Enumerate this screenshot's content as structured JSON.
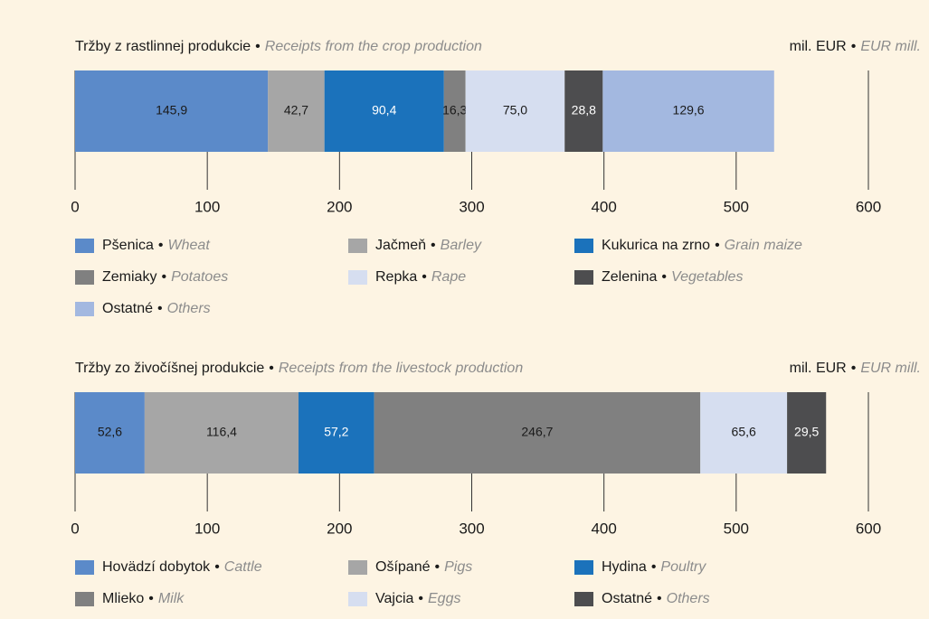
{
  "chart_data": [
    {
      "type": "bar",
      "orientation": "horizontal",
      "stacked": true,
      "title": "Tržby z rastlinnej produkcie",
      "separator": "•",
      "title_en": "Receipts from the crop production",
      "unit": "mil. EUR",
      "unit_en": "EUR mill.",
      "xlim": [
        0,
        600
      ],
      "xticks": [
        0,
        100,
        200,
        300,
        400,
        500,
        600
      ],
      "grid": true,
      "series": [
        {
          "name": "Pšenica",
          "name_en": "Wheat",
          "color": "#5b8ac9",
          "values": [
            145.9
          ],
          "value_labels": [
            "145,9"
          ]
        },
        {
          "name": "Jačmeň",
          "name_en": "Barley",
          "color": "#a6a6a6",
          "values": [
            42.7
          ],
          "value_labels": [
            "42,7"
          ]
        },
        {
          "name": "Kukurica na zrno",
          "name_en": "Grain maize",
          "color": "#1b72bb",
          "values": [
            90.4
          ],
          "value_labels": [
            "90,4"
          ]
        },
        {
          "name": "Zemiaky",
          "name_en": "Potatoes",
          "color": "#808080",
          "values": [
            16.3
          ],
          "value_labels": [
            "16,3"
          ]
        },
        {
          "name": "Repka",
          "name_en": "Rape",
          "color": "#d6def0",
          "values": [
            75.0
          ],
          "value_labels": [
            "75,0"
          ]
        },
        {
          "name": "Zelenina",
          "name_en": "Vegetables",
          "color": "#4d4d4f",
          "values": [
            28.8
          ],
          "value_labels": [
            "28,8"
          ]
        },
        {
          "name": "Ostatné",
          "name_en": "Others",
          "color": "#a3b8e0",
          "values": [
            129.6
          ],
          "value_labels": [
            "129,6"
          ]
        }
      ]
    },
    {
      "type": "bar",
      "orientation": "horizontal",
      "stacked": true,
      "title": "Tržby zo živočíšnej produkcie",
      "separator": "•",
      "title_en": "Receipts from the livestock production",
      "unit": "mil. EUR",
      "unit_en": "EUR mill.",
      "xlim": [
        0,
        600
      ],
      "xticks": [
        0,
        100,
        200,
        300,
        400,
        500,
        600
      ],
      "grid": true,
      "series": [
        {
          "name": "Hovädzí dobytok",
          "name_en": "Cattle",
          "color": "#5b8ac9",
          "values": [
            52.6
          ],
          "value_labels": [
            "52,6"
          ]
        },
        {
          "name": "Ošípané",
          "name_en": "Pigs",
          "color": "#a6a6a6",
          "values": [
            116.4
          ],
          "value_labels": [
            "116,4"
          ]
        },
        {
          "name": "Hydina",
          "name_en": "Poultry",
          "color": "#1b72bb",
          "values": [
            57.2
          ],
          "value_labels": [
            "57,2"
          ]
        },
        {
          "name": "Mlieko",
          "name_en": "Milk",
          "color": "#808080",
          "values": [
            246.7
          ],
          "value_labels": [
            "246,7"
          ]
        },
        {
          "name": "Vajcia",
          "name_en": "Eggs",
          "color": "#d6def0",
          "values": [
            65.6
          ],
          "value_labels": [
            "65,6"
          ]
        },
        {
          "name": "Ostatné",
          "name_en": "Others",
          "color": "#4d4d4f",
          "values": [
            29.5
          ],
          "value_labels": [
            "29,5"
          ]
        }
      ]
    }
  ]
}
